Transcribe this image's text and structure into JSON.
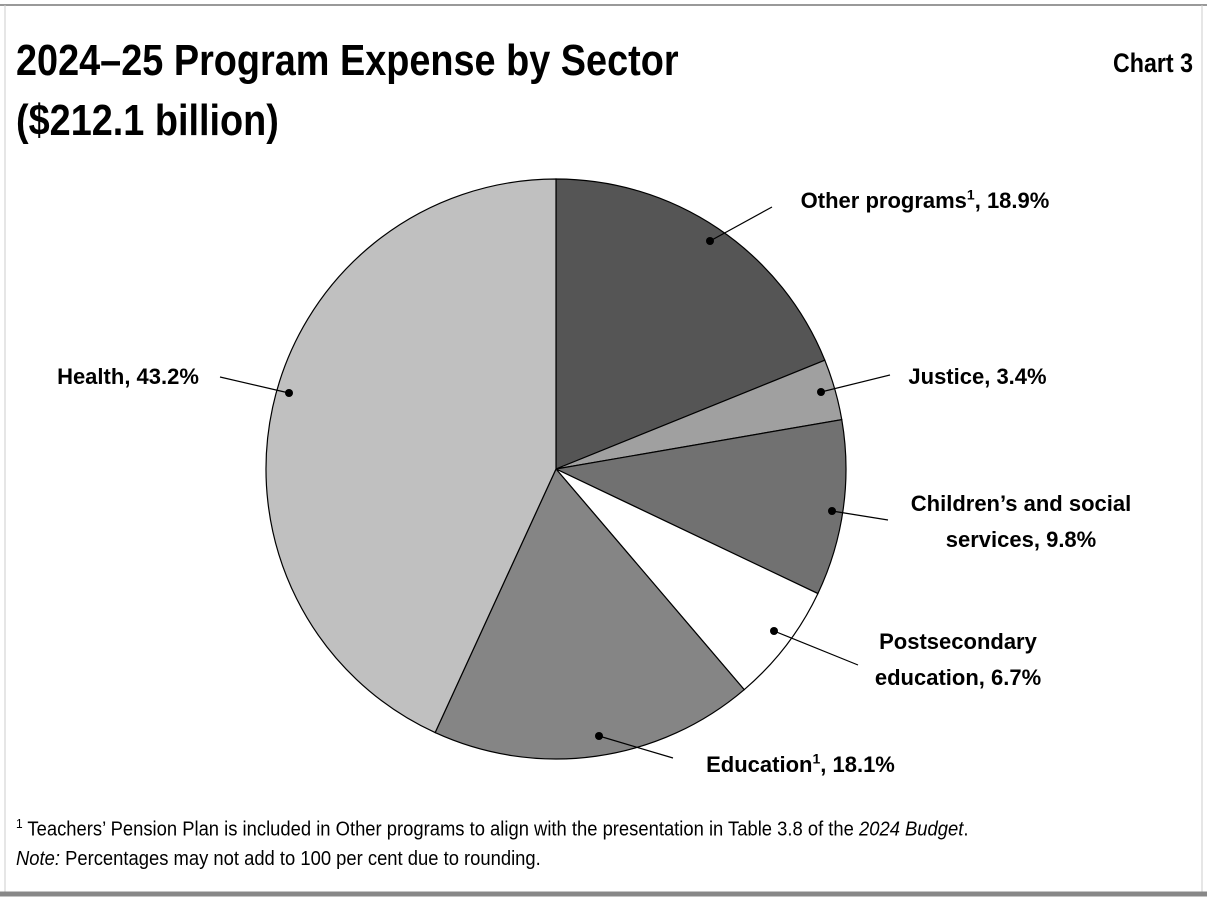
{
  "chart_data": {
    "type": "pie",
    "title": "2024–25 Program Expense by Sector",
    "subtitle": "($212.1 billion)",
    "chart_label": "Chart 3",
    "categories": [
      "Other programs",
      "Justice",
      "Children’s and social services",
      "Postsecondary education",
      "Education",
      "Health"
    ],
    "category_footnote_marks": [
      "1",
      null,
      null,
      null,
      "1",
      null
    ],
    "values": [
      18.9,
      3.4,
      9.8,
      6.7,
      18.1,
      43.2
    ],
    "value_labels": [
      ", 18.9%",
      ", 3.4%",
      ", 9.8%",
      ", 6.7%",
      ", 18.1%",
      ", 43.2%"
    ],
    "colors": [
      "#555555",
      "#a0a0a0",
      "#717171",
      "#ffffff",
      "#858585",
      "#c0c0c0"
    ],
    "footnote": {
      "mark": "1",
      "text": " Teachers’ Pension Plan is included in Other programs to align with the presentation in Table 3.8 of the ",
      "italic": "2024 Budget",
      "end": "."
    },
    "note": {
      "label": "Note:",
      "text": " Percentages may not add to 100 per cent due to rounding."
    }
  }
}
